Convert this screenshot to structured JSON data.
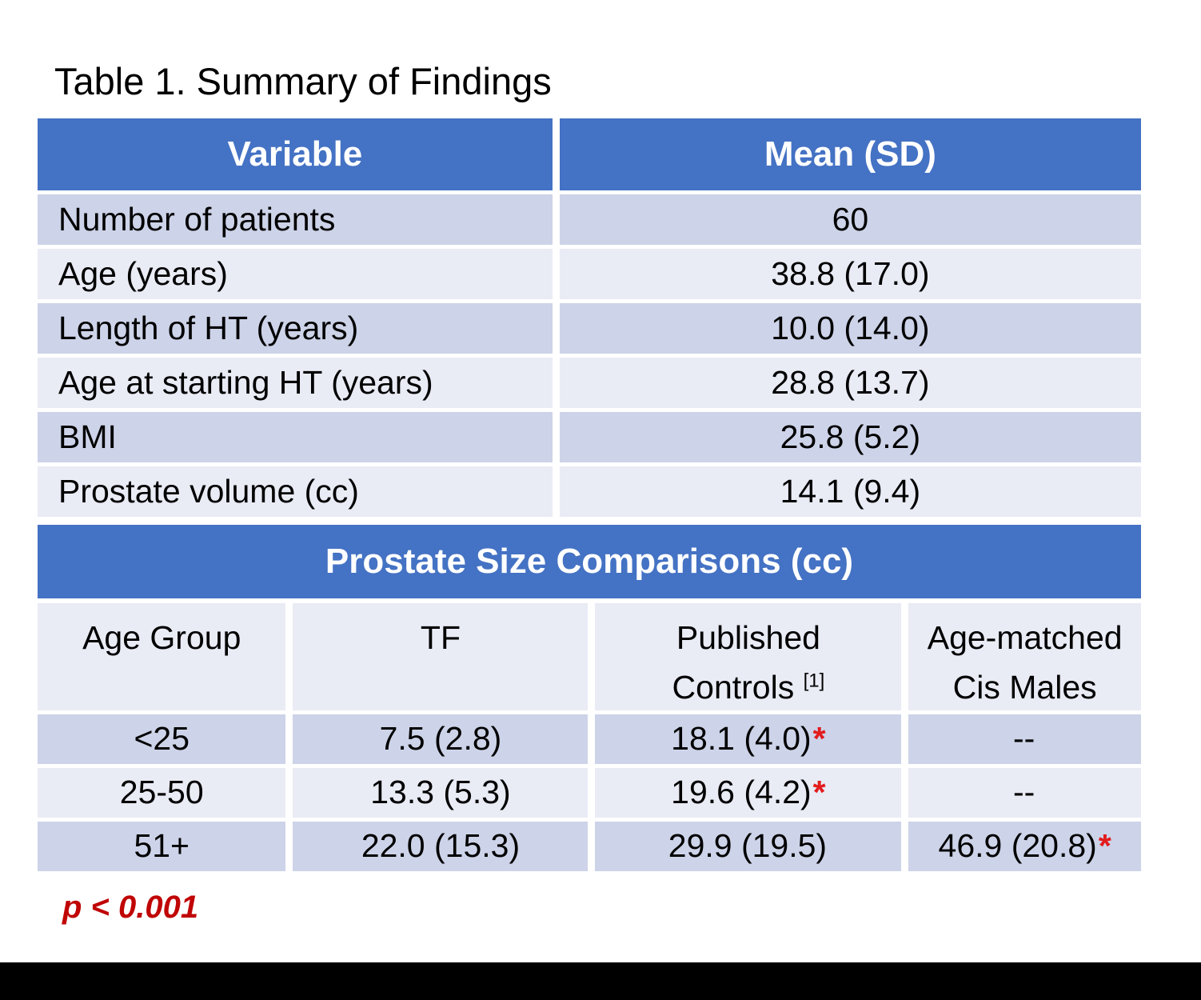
{
  "title": "Table 1. Summary of Findings",
  "colors": {
    "header_blue": "#4472C4",
    "band_dark": "#CDD3E8",
    "band_light": "#E9EBF5",
    "asterisk_red": "#E31B1C",
    "footnote_red": "#C00505",
    "bottom_bar": "#000000"
  },
  "summary_table": {
    "columns": {
      "variable": "Variable",
      "mean_sd": "Mean (SD)"
    },
    "rows": [
      {
        "variable": "Number of patients",
        "value": "60"
      },
      {
        "variable": "Age (years)",
        "value": "38.8 (17.0)"
      },
      {
        "variable": "Length of HT (years)",
        "value": "10.0 (14.0)"
      },
      {
        "variable": "Age at starting HT (years)",
        "value": "28.8 (13.7)"
      },
      {
        "variable": "BMI",
        "value": "25.8 (5.2)"
      },
      {
        "variable": "Prostate volume (cc)",
        "value": "14.1 (9.4)"
      }
    ]
  },
  "comparison_table": {
    "section_title": "Prostate Size Comparisons (cc)",
    "headers": {
      "age_group": "Age Group",
      "tf": "TF",
      "published_line1": "Published",
      "published_line2": "Controls",
      "published_sup": "[1]",
      "cis_line1": "Age-matched",
      "cis_line2": "Cis Males"
    },
    "rows": [
      {
        "age_group": "<25",
        "tf": "7.5 (2.8)",
        "published": "18.1 (4.0)",
        "published_star": "*",
        "cis": "--",
        "cis_star": ""
      },
      {
        "age_group": "25-50",
        "tf": "13.3 (5.3)",
        "published": "19.6 (4.2)",
        "published_star": "*",
        "cis": "--",
        "cis_star": ""
      },
      {
        "age_group": "51+",
        "tf": "22.0 (15.3)",
        "published": "29.9 (19.5)",
        "published_star": "",
        "cis": "46.9 (20.8)",
        "cis_star": "*"
      }
    ]
  },
  "footnote": "p < 0.001"
}
